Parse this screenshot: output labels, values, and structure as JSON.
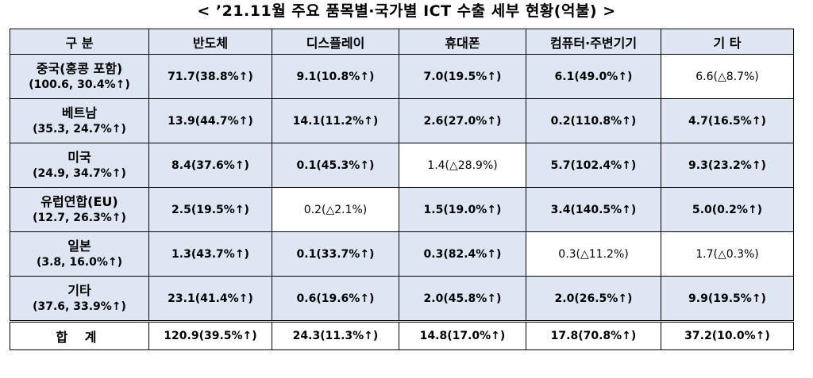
{
  "title": "< ’21.11월 주요 품목별·국가별 ICT 수출 세부 현황(억불) >",
  "header": {
    "corner": "구 분",
    "columns": [
      "반도체",
      "디스플레이",
      "휴대폰",
      "컴퓨터·주변기기",
      "기 타"
    ]
  },
  "rows": [
    {
      "name": "중국(홍콩 포함)",
      "sub": "(100.6, 30.4%↑)",
      "cells": [
        "71.7(38.8%↑)",
        "9.1(10.8%↑)",
        "7.0(19.5%↑)",
        "6.1(49.0%↑)",
        "6.6(△8.7%)"
      ]
    },
    {
      "name": "베트남",
      "sub": "(35.3, 24.7%↑)",
      "cells": [
        "13.9(44.7%↑)",
        "14.1(11.2%↑)",
        "2.6(27.0%↑)",
        "0.2(110.8%↑)",
        "4.7(16.5%↑)"
      ]
    },
    {
      "name": "미국",
      "sub": "(24.9, 34.7%↑)",
      "cells": [
        "8.4(37.6%↑)",
        "0.1(45.3%↑)",
        "1.4(△28.9%)",
        "5.7(102.4%↑)",
        "9.3(23.2%↑)"
      ]
    },
    {
      "name": "유럽연합(EU)",
      "sub": "(12.7, 26.3%↑)",
      "cells": [
        "2.5(19.5%↑)",
        "0.2(△2.1%)",
        "1.5(19.0%↑)",
        "3.4(140.5%↑)",
        "5.0(0.2%↑)"
      ]
    },
    {
      "name": "일본",
      "sub": "(3.8, 16.0%↑)",
      "cells": [
        "1.3(43.7%↑)",
        "0.1(33.7%↑)",
        "0.3(82.4%↑)",
        "0.3(△11.2%)",
        "1.7(△0.3%)"
      ]
    },
    {
      "name": "기타",
      "sub": "(37.6, 33.9%↑)",
      "cells": [
        "23.1(41.4%↑)",
        "0.6(19.6%↑)",
        "2.0(45.8%↑)",
        "2.0(26.5%↑)",
        "9.9(19.5%↑)"
      ]
    }
  ],
  "total": {
    "label": "합 계",
    "cells": [
      "120.9(39.5%↑)",
      "24.3(11.3%↑)",
      "14.8(17.0%↑)",
      "17.8(70.8%↑)",
      "37.2(10.0%↑)"
    ]
  }
}
